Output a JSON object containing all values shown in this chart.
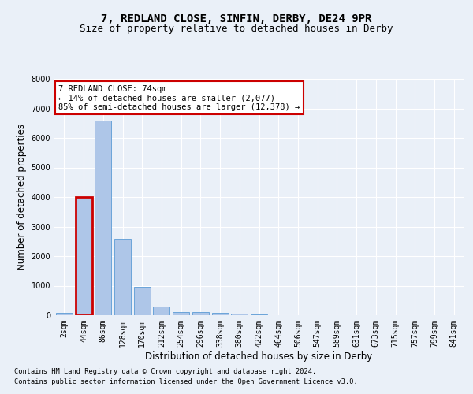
{
  "title1": "7, REDLAND CLOSE, SINFIN, DERBY, DE24 9PR",
  "title2": "Size of property relative to detached houses in Derby",
  "xlabel": "Distribution of detached houses by size in Derby",
  "ylabel": "Number of detached properties",
  "bin_labels": [
    "2sqm",
    "44sqm",
    "86sqm",
    "128sqm",
    "170sqm",
    "212sqm",
    "254sqm",
    "296sqm",
    "338sqm",
    "380sqm",
    "422sqm",
    "464sqm",
    "506sqm",
    "547sqm",
    "589sqm",
    "631sqm",
    "673sqm",
    "715sqm",
    "757sqm",
    "799sqm",
    "841sqm"
  ],
  "bar_heights": [
    80,
    4000,
    6600,
    2600,
    950,
    300,
    120,
    100,
    90,
    60,
    30,
    0,
    0,
    0,
    0,
    0,
    0,
    0,
    0,
    0,
    0
  ],
  "bar_color": "#aec6e8",
  "bar_edge_color": "#5b9bd5",
  "highlight_bar_index": 1,
  "highlight_color": "#cc0000",
  "ylim": [
    0,
    8000
  ],
  "yticks": [
    0,
    1000,
    2000,
    3000,
    4000,
    5000,
    6000,
    7000,
    8000
  ],
  "annotation_text": "7 REDLAND CLOSE: 74sqm\n← 14% of detached houses are smaller (2,077)\n85% of semi-detached houses are larger (12,378) →",
  "annotation_box_color": "#ffffff",
  "annotation_box_edge": "#cc0000",
  "footer1": "Contains HM Land Registry data © Crown copyright and database right 2024.",
  "footer2": "Contains public sector information licensed under the Open Government Licence v3.0.",
  "bg_color": "#eaf0f8",
  "plot_bg_color": "#eaf0f8",
  "grid_color": "#ffffff",
  "title_fontsize": 10,
  "subtitle_fontsize": 9,
  "axis_label_fontsize": 8.5,
  "tick_fontsize": 7,
  "annotation_fontsize": 7.5
}
